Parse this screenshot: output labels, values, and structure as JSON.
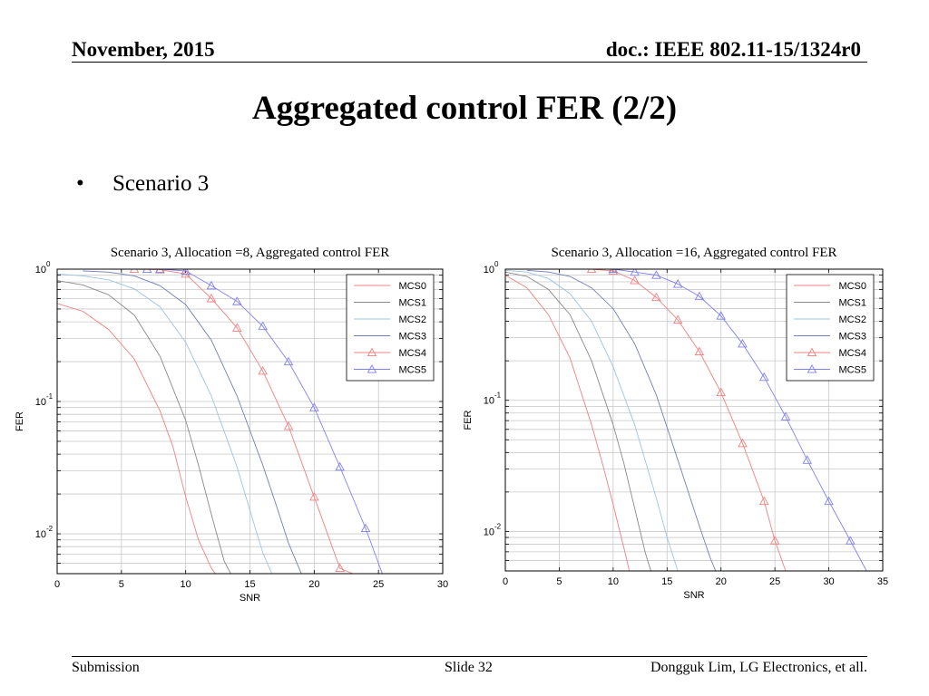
{
  "header": {
    "date": "November, 2015",
    "doc": "doc.: IEEE 802.11-15/1324r0"
  },
  "title": "Aggregated control FER (2/2)",
  "bullet": {
    "marker": "•",
    "text": "Scenario 3"
  },
  "footer": {
    "left": "Submission",
    "center": "Slide 32",
    "right": "Dongguk Lim, LG Electronics, et all."
  },
  "chart_data": [
    {
      "type": "line",
      "title": "Scenario 3, Allocation =8, Aggregated control FER",
      "xlabel": "SNR",
      "ylabel": "FER",
      "xlim": [
        0,
        30
      ],
      "ylim": [
        0.005,
        1
      ],
      "yscale": "log",
      "xticks": [
        0,
        5,
        10,
        15,
        20,
        25,
        30
      ],
      "yticks": [
        {
          "base": "10",
          "exp": "0",
          "value": 1
        },
        {
          "base": "10",
          "exp": "-1",
          "value": 0.1
        },
        {
          "base": "10",
          "exp": "-2",
          "value": 0.01
        }
      ],
      "grid": true,
      "legend_position": "top-right",
      "series": [
        {
          "name": "MCS0",
          "color": "#f08080",
          "marker": "none",
          "x": [
            0,
            2,
            4,
            6,
            8,
            9,
            10,
            11,
            12,
            12.3
          ],
          "y": [
            0.55,
            0.48,
            0.35,
            0.21,
            0.085,
            0.046,
            0.019,
            0.009,
            0.0055,
            0.005
          ]
        },
        {
          "name": "MCS1",
          "color": "#8a8a8a",
          "marker": "none",
          "x": [
            0,
            2,
            4,
            6,
            8,
            10,
            11,
            12,
            13,
            13.5
          ],
          "y": [
            0.82,
            0.76,
            0.64,
            0.45,
            0.22,
            0.072,
            0.033,
            0.014,
            0.0062,
            0.005
          ]
        },
        {
          "name": "MCS2",
          "color": "#9bc4e4",
          "marker": "none",
          "x": [
            0,
            2,
            4,
            6,
            8,
            10,
            12,
            14,
            15,
            16,
            16.7
          ],
          "y": [
            0.92,
            0.89,
            0.83,
            0.71,
            0.52,
            0.28,
            0.11,
            0.032,
            0.015,
            0.0072,
            0.005
          ]
        },
        {
          "name": "MCS3",
          "color": "#6f7fb8",
          "marker": "none",
          "x": [
            2,
            4,
            6,
            8,
            10,
            12,
            14,
            16,
            17,
            18,
            19
          ],
          "y": [
            0.97,
            0.95,
            0.89,
            0.75,
            0.54,
            0.29,
            0.11,
            0.033,
            0.017,
            0.0085,
            0.005
          ]
        },
        {
          "name": "MCS4",
          "color": "#f08080",
          "marker": "triangle",
          "x": [
            6,
            8,
            10,
            12,
            14,
            16,
            18,
            20,
            22,
            23
          ],
          "y": [
            1.0,
            0.99,
            0.92,
            0.6,
            0.36,
            0.17,
            0.065,
            0.019,
            0.0055,
            0.005
          ]
        },
        {
          "name": "MCS5",
          "color": "#8080f0",
          "marker": "triangle",
          "x": [
            7,
            8,
            10,
            12,
            14,
            16,
            18,
            20,
            22,
            24,
            25.3
          ],
          "y": [
            1.0,
            1.0,
            0.97,
            0.75,
            0.57,
            0.37,
            0.2,
            0.09,
            0.032,
            0.011,
            0.005
          ]
        }
      ]
    },
    {
      "type": "line",
      "title": "Scenario 3, Allocation =16, Aggregated control FER",
      "xlabel": "SNR",
      "ylabel": "FER",
      "xlim": [
        0,
        35
      ],
      "ylim": [
        0.005,
        1
      ],
      "yscale": "log",
      "xticks": [
        0,
        5,
        10,
        15,
        20,
        25,
        30,
        35
      ],
      "yticks": [
        {
          "base": "10",
          "exp": "0",
          "value": 1
        },
        {
          "base": "10",
          "exp": "-1",
          "value": 0.1
        },
        {
          "base": "10",
          "exp": "-2",
          "value": 0.01
        }
      ],
      "grid": true,
      "legend_position": "top-right",
      "series": [
        {
          "name": "MCS0",
          "color": "#f08080",
          "marker": "none",
          "x": [
            0,
            2,
            4,
            6,
            8,
            9,
            10,
            11,
            11.5
          ],
          "y": [
            0.9,
            0.72,
            0.45,
            0.21,
            0.065,
            0.033,
            0.016,
            0.0075,
            0.005
          ]
        },
        {
          "name": "MCS1",
          "color": "#8a8a8a",
          "marker": "none",
          "x": [
            0,
            2,
            4,
            6,
            8,
            10,
            11,
            12,
            13,
            13.5
          ],
          "y": [
            0.95,
            0.88,
            0.7,
            0.45,
            0.2,
            0.065,
            0.033,
            0.015,
            0.0068,
            0.005
          ]
        },
        {
          "name": "MCS2",
          "color": "#9bc4e4",
          "marker": "none",
          "x": [
            0,
            2,
            4,
            6,
            8,
            10,
            12,
            14,
            15,
            16
          ],
          "y": [
            0.98,
            0.95,
            0.85,
            0.65,
            0.4,
            0.18,
            0.065,
            0.018,
            0.009,
            0.005
          ]
        },
        {
          "name": "MCS3",
          "color": "#6f7fb8",
          "marker": "none",
          "x": [
            2,
            4,
            6,
            8,
            10,
            12,
            14,
            16,
            18,
            19,
            19.5
          ],
          "y": [
            0.98,
            0.95,
            0.88,
            0.72,
            0.5,
            0.27,
            0.11,
            0.035,
            0.011,
            0.0063,
            0.005
          ]
        },
        {
          "name": "MCS4",
          "color": "#f08080",
          "marker": "triangle",
          "x": [
            8,
            10,
            12,
            14,
            16,
            18,
            20,
            22,
            24,
            25,
            26
          ],
          "y": [
            1.0,
            0.97,
            0.82,
            0.61,
            0.41,
            0.235,
            0.115,
            0.047,
            0.017,
            0.0085,
            0.005
          ]
        },
        {
          "name": "MCS5",
          "color": "#8080f0",
          "marker": "triangle",
          "x": [
            10,
            12,
            14,
            16,
            18,
            20,
            22,
            24,
            26,
            28,
            30,
            32,
            33.5
          ],
          "y": [
            1.0,
            0.95,
            0.9,
            0.77,
            0.62,
            0.44,
            0.27,
            0.15,
            0.075,
            0.035,
            0.017,
            0.0085,
            0.005
          ]
        }
      ]
    }
  ]
}
